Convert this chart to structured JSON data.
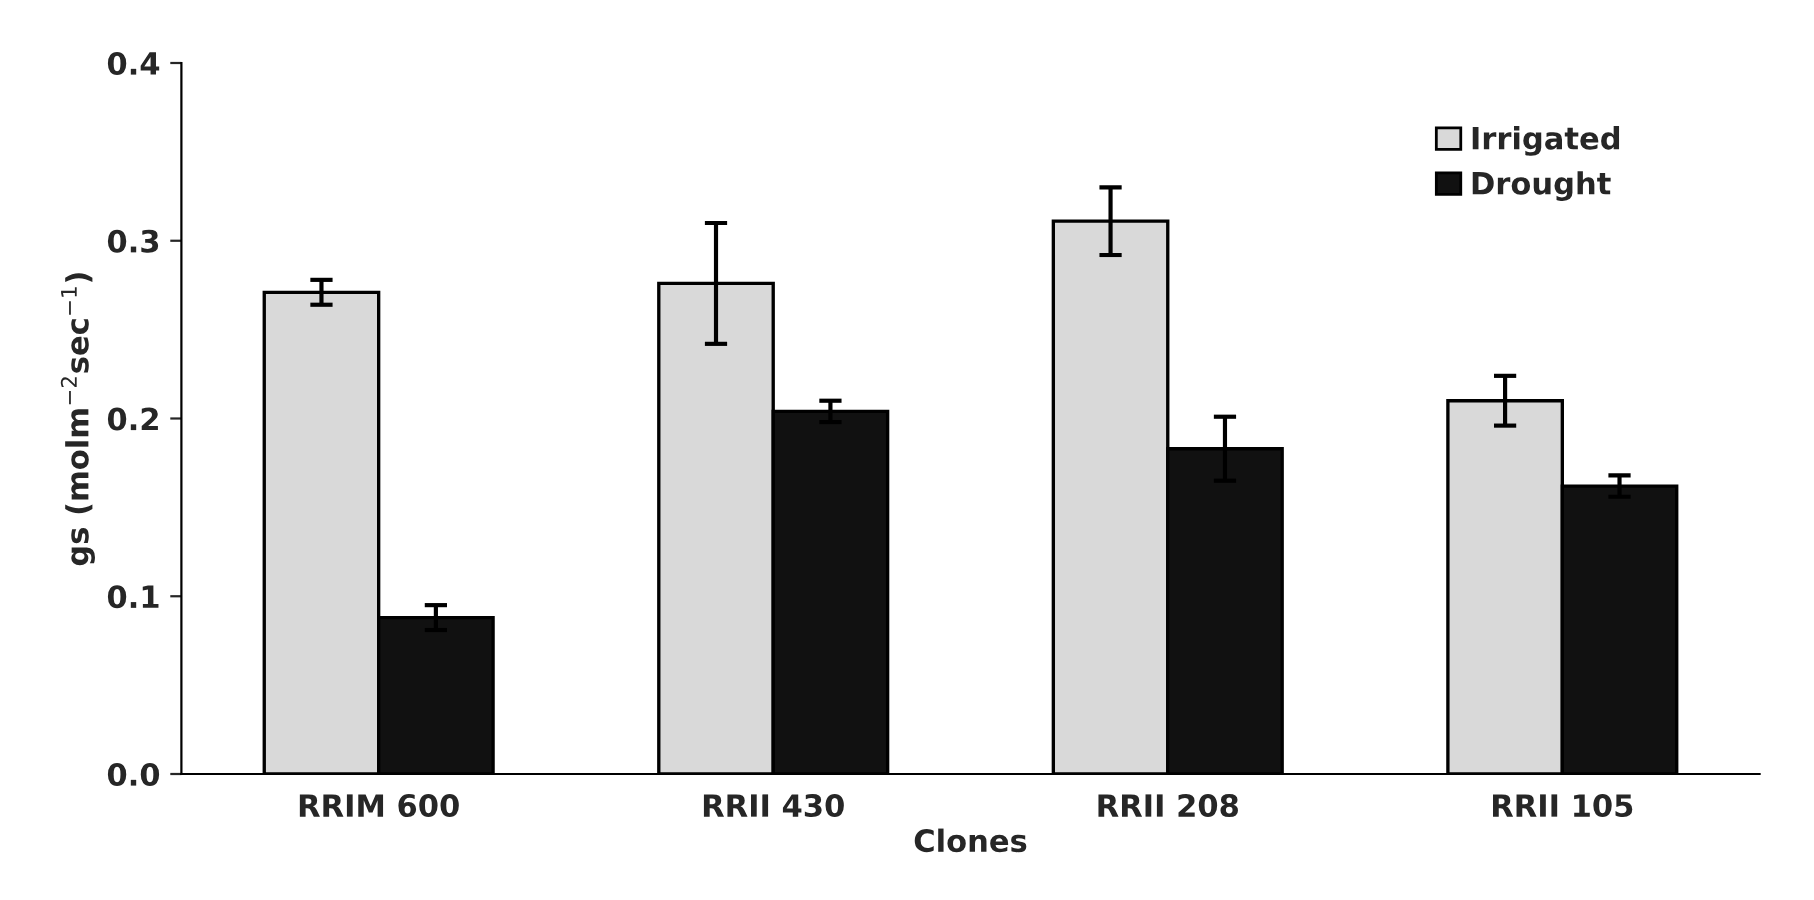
{
  "chart_data": {
    "type": "bar",
    "xlabel": "Clones",
    "ylabel": "gs (molm$^{−2}$sec$^{−1}$)",
    "categories": [
      "RRIM 600",
      "RRII 430",
      "RRII 208",
      "RRII 105"
    ],
    "series": [
      {
        "name": "Irrigated",
        "color": "#d9d9d9",
        "values": [
          0.271,
          0.276,
          0.311,
          0.21
        ],
        "errors": [
          0.007,
          0.034,
          0.019,
          0.014
        ]
      },
      {
        "name": "Drought",
        "color": "#111111",
        "values": [
          0.088,
          0.204,
          0.183,
          0.162
        ],
        "errors": [
          0.007,
          0.006,
          0.018,
          0.006
        ]
      }
    ],
    "ylim": [
      0,
      0.4
    ],
    "yticks": [
      {
        "value": 0,
        "label": "0.0"
      },
      {
        "value": 0.1,
        "label": "0.1"
      },
      {
        "value": 0.2,
        "label": "0.2"
      },
      {
        "value": 0.3,
        "label": "0.3"
      },
      {
        "value": 0.4,
        "label": "0.4"
      }
    ],
    "grid": false,
    "legend": "top right"
  }
}
